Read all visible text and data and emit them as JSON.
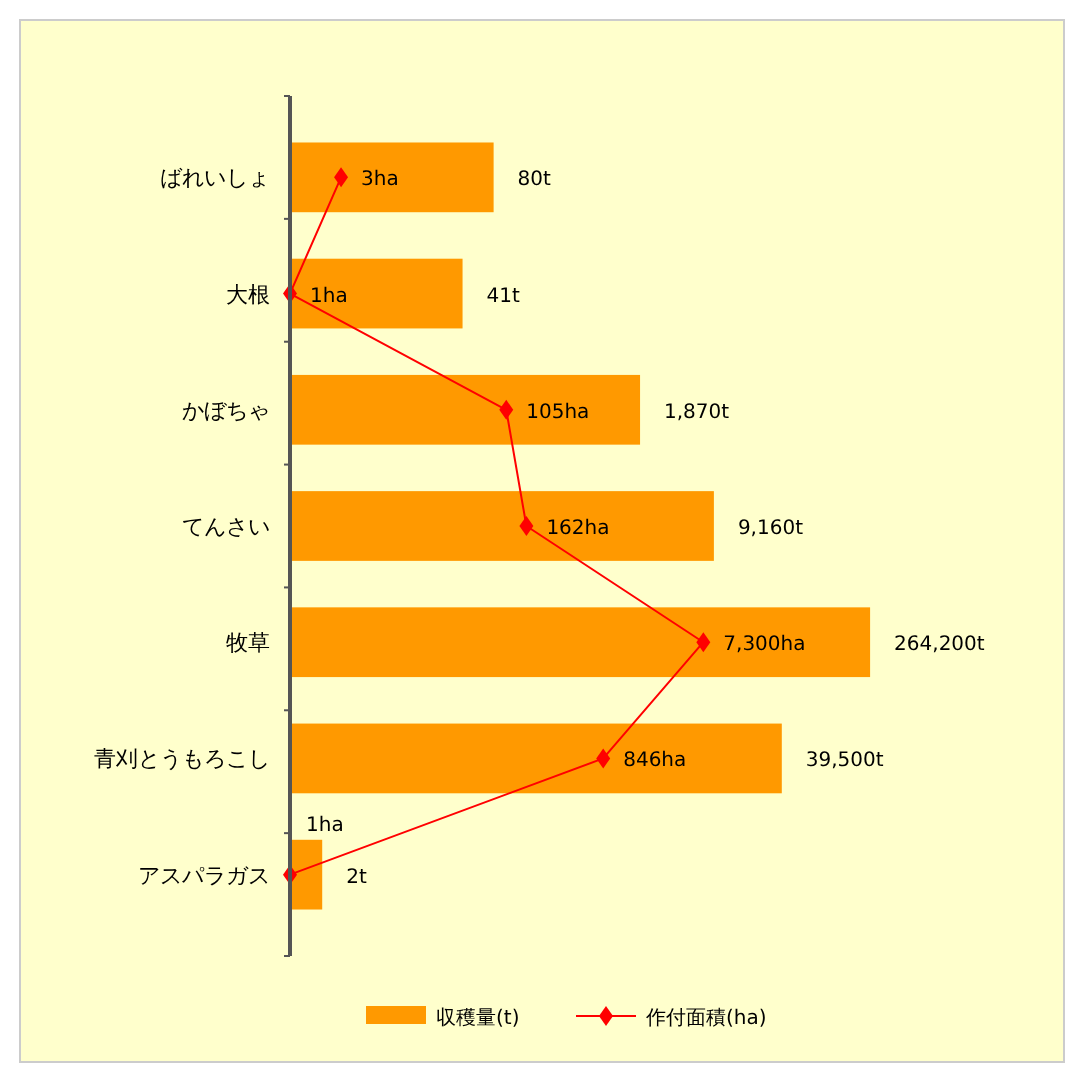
{
  "chart_data": {
    "type": "bar",
    "orientation": "horizontal",
    "log": "x",
    "categories": [
      "ばれいしょ",
      "大根",
      "かぼちゃ",
      "てんさい",
      "牧草",
      "青刈とうもろこし",
      "アスパラガス"
    ],
    "xlim": [
      1,
      300000
    ],
    "legend": "bottom",
    "series": [
      {
        "name": "収穫量(t)",
        "color": "#ff9900",
        "values": [
          80,
          41,
          1870,
          9160,
          264200,
          39500,
          2
        ],
        "value_labels": [
          "80t",
          "41t",
          "1,870t",
          "9,160t",
          "264,200t",
          "39,500t",
          "2t"
        ]
      },
      {
        "name": "作付面積(ha)",
        "type": "line",
        "color": "#ff0000",
        "marker": "diamond",
        "line_style": "solid",
        "values": [
          3,
          1,
          105,
          162,
          7300,
          846,
          1
        ],
        "value_labels": [
          "3ha",
          "1ha",
          "105ha",
          "162ha",
          "7,300ha",
          "846ha",
          "1ha"
        ]
      }
    ]
  }
}
